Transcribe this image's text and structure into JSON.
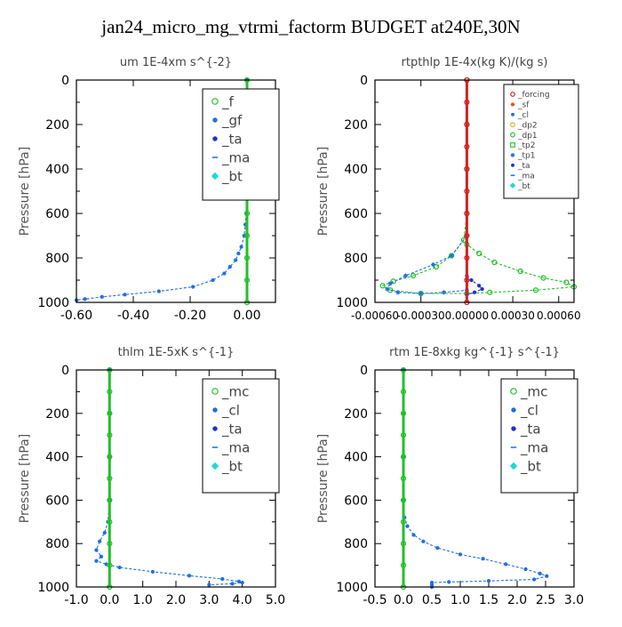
{
  "page": {
    "title": "jan24_micro_mg_vtrmi_factorm  BUDGET at240E,30N"
  },
  "chart_data": [
    {
      "type": "line",
      "title": "um   1E-4xm  s^{-2}",
      "ylabel": "Pressure [hPa]",
      "ylim": [
        1000,
        0
      ],
      "y_ticks": [
        "0",
        "200",
        "400",
        "600",
        "800",
        "1000"
      ],
      "xlim": [
        -0.6,
        0.1
      ],
      "x_ticks": [
        {
          "v": -0.6,
          "label": "-0.60"
        },
        {
          "v": -0.4,
          "label": "-0.40"
        },
        {
          "v": -0.2,
          "label": "-0.20"
        },
        {
          "v": 0.0,
          "label": "0.00"
        }
      ],
      "legend": [
        "_f",
        "_gf",
        "_ta",
        "_ma",
        "_bt"
      ],
      "legend_position": "top-right",
      "series": [
        {
          "name": "_gf",
          "color": "#1f6fe0",
          "points": [
            [
              0,
              0
            ],
            [
              0,
              100
            ],
            [
              0,
              200
            ],
            [
              0,
              300
            ],
            [
              0,
              400
            ],
            [
              -0.001,
              500
            ],
            [
              -0.003,
              600
            ],
            [
              -0.006,
              650
            ],
            [
              -0.01,
              700
            ],
            [
              -0.02,
              750
            ],
            [
              -0.03,
              780
            ],
            [
              -0.04,
              810
            ],
            [
              -0.06,
              840
            ],
            [
              -0.08,
              870
            ],
            [
              -0.12,
              900
            ],
            [
              -0.19,
              930
            ],
            [
              -0.31,
              950
            ],
            [
              -0.43,
              965
            ],
            [
              -0.51,
              975
            ],
            [
              -0.57,
              985
            ],
            [
              -0.6,
              990
            ]
          ]
        },
        {
          "name": "_f",
          "color": "#22c028",
          "points": [
            [
              0,
              0
            ],
            [
              0,
              100
            ],
            [
              0,
              200
            ],
            [
              0,
              300
            ],
            [
              0,
              400
            ],
            [
              0,
              500
            ],
            [
              0,
              600
            ],
            [
              0,
              700
            ],
            [
              0,
              800
            ],
            [
              0,
              900
            ],
            [
              0,
              1000
            ]
          ]
        }
      ]
    },
    {
      "type": "line",
      "title": "rtpthlp   1E-4x(kg K)/(kg s)",
      "ylabel": "Pressure [hPa]",
      "ylim": [
        1000,
        0
      ],
      "y_ticks": [
        "0",
        "200",
        "400",
        "600",
        "800",
        "1000"
      ],
      "xlim": [
        -0.0006,
        0.0007
      ],
      "x_ticks": [
        {
          "v": -0.0006,
          "label": "-0.00060"
        },
        {
          "v": -0.0003,
          "label": "-0.00030"
        },
        {
          "v": 0.0,
          "label": "0.00000"
        },
        {
          "v": 0.0003,
          "label": "0.00030"
        },
        {
          "v": 0.0006,
          "label": "0.00060"
        }
      ],
      "legend": [
        "_forcing",
        "_sf",
        "_cl",
        "_dp2",
        "_dp1",
        "_tp2",
        "_tp1",
        "_ta",
        "_ma",
        "_bt"
      ],
      "legend_position": "top-right",
      "series": [
        {
          "name": "_dp1",
          "color": "#22c028",
          "points": [
            [
              0,
              0
            ],
            [
              0,
              200
            ],
            [
              0,
              400
            ],
            [
              0,
              600
            ],
            [
              -2e-05,
              720
            ],
            [
              -0.0001,
              790
            ],
            [
              -0.0002,
              840
            ],
            [
              -0.00035,
              880
            ],
            [
              -0.00048,
              905
            ],
            [
              -0.00055,
              925
            ],
            [
              -0.0005,
              945
            ],
            [
              -0.0003,
              960
            ],
            [
              0,
              960
            ],
            [
              0.00015,
              955
            ],
            [
              0.00045,
              945
            ],
            [
              0.0007,
              930
            ],
            [
              0.00065,
              910
            ],
            [
              0.0005,
              890
            ],
            [
              0.00035,
              860
            ],
            [
              0.00018,
              820
            ],
            [
              8e-05,
              780
            ],
            [
              0,
              740
            ]
          ]
        },
        {
          "name": "_tp1",
          "color": "#1f6fe0",
          "points": [
            [
              0,
              700
            ],
            [
              -0.0001,
              790
            ],
            [
              -0.00022,
              830
            ],
            [
              -0.0004,
              880
            ],
            [
              -0.0005,
              915
            ],
            [
              -0.00052,
              940
            ],
            [
              -0.00045,
              955
            ],
            [
              -0.0003,
              960
            ],
            [
              -0.00015,
              955
            ],
            [
              0,
              945
            ]
          ]
        },
        {
          "name": "_ta",
          "color": "#2030d0",
          "points": [
            [
              0,
              880
            ],
            [
              3e-05,
              900
            ],
            [
              8e-05,
              925
            ],
            [
              0.0001,
              940
            ],
            [
              5e-05,
              955
            ],
            [
              0,
              965
            ]
          ]
        },
        {
          "name": "_forcing",
          "color": "#d42020",
          "points": [
            [
              0,
              0
            ],
            [
              0,
              100
            ],
            [
              0,
              200
            ],
            [
              0,
              300
            ],
            [
              0,
              400
            ],
            [
              0,
              500
            ],
            [
              0,
              600
            ],
            [
              0,
              700
            ],
            [
              0,
              800
            ],
            [
              0,
              900
            ],
            [
              0,
              1000
            ]
          ]
        }
      ]
    },
    {
      "type": "line",
      "title": "thlm   1E-5xK  s^{-1}",
      "ylabel": "Pressure [hPa]",
      "ylim": [
        1000,
        0
      ],
      "y_ticks": [
        "0",
        "200",
        "400",
        "600",
        "800",
        "1000"
      ],
      "xlim": [
        -1.0,
        5.0
      ],
      "x_ticks": [
        {
          "v": -1.0,
          "label": "-1.0"
        },
        {
          "v": 0.0,
          "label": "0.0"
        },
        {
          "v": 1.0,
          "label": "1.0"
        },
        {
          "v": 2.0,
          "label": "2.0"
        },
        {
          "v": 3.0,
          "label": "3.0"
        },
        {
          "v": 4.0,
          "label": "4.0"
        },
        {
          "v": 5.0,
          "label": "5.0"
        }
      ],
      "legend": [
        "_mc",
        "_cl",
        "_ta",
        "_ma",
        "_bt"
      ],
      "legend_position": "top-right",
      "series": [
        {
          "name": "_cl",
          "color": "#1f6fe0",
          "points": [
            [
              0,
              0
            ],
            [
              0,
              200
            ],
            [
              0,
              400
            ],
            [
              0,
              600
            ],
            [
              -0.05,
              700
            ],
            [
              -0.15,
              750
            ],
            [
              -0.3,
              790
            ],
            [
              -0.4,
              830
            ],
            [
              -0.25,
              860
            ],
            [
              -0.4,
              880
            ],
            [
              -0.1,
              895
            ],
            [
              0.3,
              910
            ],
            [
              1.3,
              930
            ],
            [
              2.4,
              948
            ],
            [
              3.4,
              963
            ],
            [
              3.9,
              975
            ],
            [
              4.0,
              980
            ],
            [
              3.7,
              985
            ],
            [
              3.0,
              990
            ]
          ]
        },
        {
          "name": "_mc",
          "color": "#22c028",
          "points": [
            [
              0,
              0
            ],
            [
              0,
              100
            ],
            [
              0,
              200
            ],
            [
              0,
              300
            ],
            [
              0,
              400
            ],
            [
              0,
              500
            ],
            [
              0,
              600
            ],
            [
              0,
              700
            ],
            [
              0,
              800
            ],
            [
              0,
              900
            ],
            [
              0,
              1000
            ]
          ]
        }
      ]
    },
    {
      "type": "line",
      "title": "rtm   1E-8xkg  kg^{-1}  s^{-1}",
      "ylabel": "Pressure [hPa]",
      "ylim": [
        1000,
        0
      ],
      "y_ticks": [
        "0",
        "200",
        "400",
        "600",
        "800",
        "1000"
      ],
      "xlim": [
        -0.5,
        3.0
      ],
      "x_ticks": [
        {
          "v": -0.5,
          "label": "-0.5"
        },
        {
          "v": 0.0,
          "label": "0.0"
        },
        {
          "v": 0.5,
          "label": "0.5"
        },
        {
          "v": 1.0,
          "label": "1.0"
        },
        {
          "v": 1.5,
          "label": "1.5"
        },
        {
          "v": 2.0,
          "label": "2.0"
        },
        {
          "v": 2.5,
          "label": "2.5"
        },
        {
          "v": 3.0,
          "label": "3.0"
        }
      ],
      "legend": [
        "_mc",
        "_cl",
        "_ta",
        "_ma",
        "_bt"
      ],
      "legend_position": "top-right",
      "series": [
        {
          "name": "_cl",
          "color": "#1f6fe0",
          "points": [
            [
              0,
              0
            ],
            [
              0,
              200
            ],
            [
              0,
              400
            ],
            [
              0,
              600
            ],
            [
              0.02,
              680
            ],
            [
              0.07,
              720
            ],
            [
              0.18,
              760
            ],
            [
              0.35,
              790
            ],
            [
              0.6,
              820
            ],
            [
              1.0,
              850
            ],
            [
              1.4,
              870
            ],
            [
              1.8,
              895
            ],
            [
              2.15,
              918
            ],
            [
              2.4,
              938
            ],
            [
              2.52,
              950
            ],
            [
              2.3,
              965
            ],
            [
              1.5,
              972
            ],
            [
              0.8,
              977
            ],
            [
              0.5,
              980
            ],
            [
              0.5,
              990
            ],
            [
              0.5,
              1000
            ]
          ]
        },
        {
          "name": "_mc",
          "color": "#22c028",
          "points": [
            [
              0,
              0
            ],
            [
              0,
              100
            ],
            [
              0,
              200
            ],
            [
              0,
              300
            ],
            [
              0,
              400
            ],
            [
              0,
              500
            ],
            [
              0,
              600
            ],
            [
              0,
              700
            ],
            [
              0,
              800
            ],
            [
              0,
              900
            ],
            [
              0,
              1000
            ]
          ]
        }
      ]
    }
  ],
  "legend_styles": {
    "_f": {
      "marker": "circle-open",
      "color": "#22c028"
    },
    "_gf": {
      "marker": "dot",
      "color": "#1f6fe0"
    },
    "_ta": {
      "marker": "dot",
      "color": "#2030d0"
    },
    "_ma": {
      "marker": "dash",
      "color": "#1f6fe0"
    },
    "_bt": {
      "marker": "diamond",
      "color": "#1fd8d8"
    },
    "_mc": {
      "marker": "circle-open",
      "color": "#22c028"
    },
    "_cl": {
      "marker": "dot",
      "color": "#1f6fe0"
    },
    "_forcing": {
      "marker": "circle-open",
      "color": "#d42020"
    },
    "_sf": {
      "marker": "star",
      "color": "#d45a1a"
    },
    "_dp2": {
      "marker": "circle-open",
      "color": "#e0b020"
    },
    "_dp1": {
      "marker": "circle-open",
      "color": "#22c028"
    },
    "_tp2": {
      "marker": "square-open",
      "color": "#22c028"
    },
    "_tp1": {
      "marker": "star",
      "color": "#1f6fe0"
    }
  }
}
